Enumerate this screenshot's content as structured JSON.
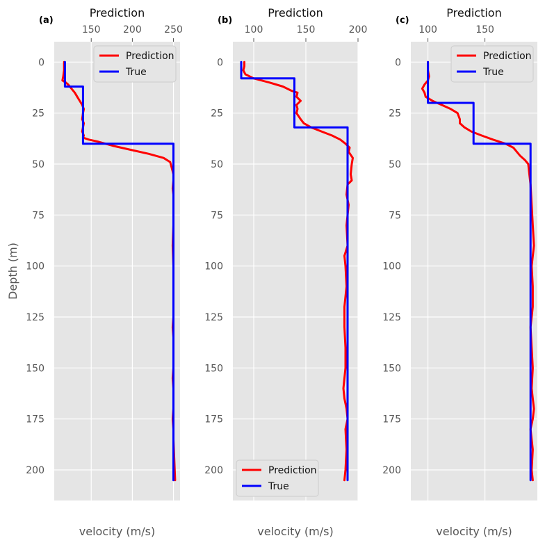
{
  "chart_data": [
    {
      "type": "line",
      "panel_label": "(a)",
      "top_title": "Prediction",
      "xlabel": "velocity (m/s)",
      "ylabel": "Depth (m)",
      "xlim": [
        105,
        258
      ],
      "ylim": [
        -10,
        215
      ],
      "xticks": [
        150,
        200,
        250
      ],
      "yticks": [
        0,
        25,
        50,
        75,
        100,
        125,
        150,
        175,
        200
      ],
      "legend_position": "top-right",
      "series": [
        {
          "name": "Prediction",
          "color": "#ff0000",
          "x": [
            117,
            117,
            116,
            115,
            119,
            122,
            126,
            130,
            133,
            136,
            139,
            141,
            140,
            139,
            141,
            140,
            139,
            141,
            140,
            147,
            158,
            176,
            198,
            220,
            238,
            246,
            248,
            250,
            250,
            249,
            250,
            250,
            250,
            249,
            250,
            250,
            250,
            250,
            250,
            249,
            250,
            250,
            250,
            250,
            249,
            250,
            250,
            250,
            249,
            250,
            250,
            251,
            252
          ],
          "y": [
            0,
            4,
            7,
            9,
            10,
            11,
            13,
            15,
            17,
            19,
            21,
            23,
            25,
            28,
            30,
            32,
            34,
            36,
            37,
            38,
            39,
            41,
            43,
            45,
            47,
            49,
            52,
            55,
            58,
            62,
            65,
            70,
            80,
            90,
            100,
            110,
            115,
            120,
            125,
            130,
            135,
            140,
            145,
            150,
            155,
            160,
            165,
            170,
            175,
            180,
            185,
            195,
            205
          ]
        },
        {
          "name": "True",
          "color": "#0000ff",
          "x": [
            118,
            118,
            121,
            121,
            140,
            140,
            250,
            250
          ],
          "y": [
            0,
            12,
            12,
            12,
            12,
            40,
            40,
            205
          ]
        }
      ]
    },
    {
      "type": "line",
      "panel_label": "(b)",
      "top_title": "Prediction",
      "xlabel": "velocity (m/s)",
      "ylabel": "",
      "xlim": [
        80,
        200
      ],
      "ylim": [
        -10,
        215
      ],
      "xticks": [
        100,
        150,
        200
      ],
      "yticks": [
        0,
        25,
        50,
        75,
        100,
        125,
        150,
        175,
        200
      ],
      "legend_position": "bottom-left",
      "series": [
        {
          "name": "Prediction",
          "color": "#ff0000",
          "x": [
            91,
            91,
            90,
            92,
            100,
            115,
            128,
            136,
            142,
            141,
            145,
            141,
            142,
            141,
            145,
            148,
            155,
            165,
            175,
            183,
            188,
            192,
            191,
            195,
            194,
            193,
            194,
            190,
            189,
            191,
            189,
            190,
            187,
            188,
            189,
            187,
            187,
            188,
            188,
            186,
            187,
            189,
            190,
            188,
            189,
            188,
            187
          ],
          "y": [
            0,
            2,
            4,
            6,
            8,
            10,
            12,
            14,
            15,
            17,
            19,
            21,
            23,
            25,
            28,
            30,
            32,
            34,
            36,
            38,
            40,
            42,
            44,
            47,
            50,
            55,
            58,
            60,
            65,
            70,
            80,
            90,
            95,
            100,
            110,
            120,
            130,
            140,
            150,
            160,
            165,
            170,
            175,
            180,
            190,
            200,
            205
          ]
        },
        {
          "name": "True",
          "color": "#0000ff",
          "x": [
            88,
            88,
            139,
            139,
            190,
            190
          ],
          "y": [
            0,
            8,
            8,
            32,
            32,
            205
          ]
        }
      ]
    },
    {
      "type": "line",
      "panel_label": "(c)",
      "top_title": "Prediction",
      "xlabel": "velocity (m/s)",
      "ylabel": "",
      "xlim": [
        85,
        196
      ],
      "ylim": [
        -10,
        215
      ],
      "xticks": [
        100,
        150
      ],
      "yticks": [
        0,
        25,
        50,
        75,
        100,
        125,
        150,
        175,
        200
      ],
      "legend_position": "top-right",
      "series": [
        {
          "name": "Prediction",
          "color": "#ff0000",
          "x": [
            100,
            100,
            101,
            100,
            97,
            95,
            97,
            98,
            104,
            112,
            120,
            126,
            128,
            128,
            132,
            138,
            147,
            157,
            168,
            175,
            178,
            181,
            185,
            188,
            189,
            190,
            191,
            192,
            193,
            191,
            192,
            192,
            190,
            191,
            192,
            191,
            192,
            193,
            192,
            190,
            192,
            191,
            192
          ],
          "y": [
            0,
            4,
            7,
            9,
            11,
            13,
            15,
            17,
            19,
            21,
            23,
            25,
            28,
            30,
            32,
            34,
            36,
            38,
            40,
            42,
            44,
            46,
            48,
            50,
            55,
            60,
            70,
            80,
            90,
            100,
            110,
            120,
            130,
            140,
            150,
            160,
            165,
            170,
            175,
            180,
            190,
            200,
            205
          ]
        },
        {
          "name": "True",
          "color": "#0000ff",
          "x": [
            100,
            100,
            140,
            140,
            190,
            190,
            190,
            190
          ],
          "y": [
            0,
            20,
            20,
            40,
            40,
            205,
            205,
            205
          ]
        }
      ]
    }
  ]
}
